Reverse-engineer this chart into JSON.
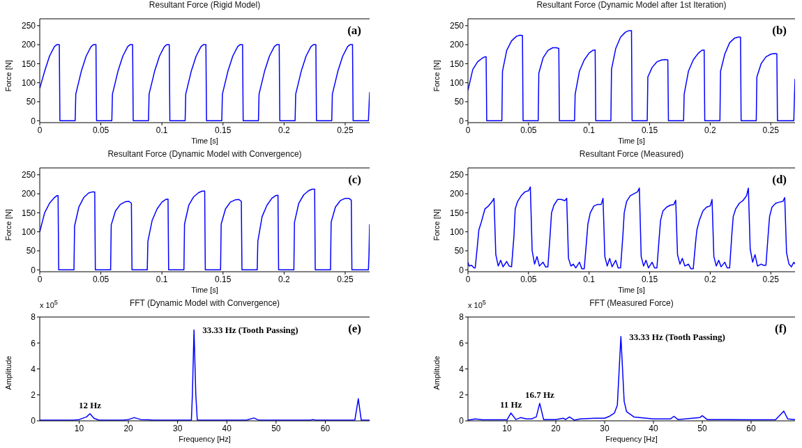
{
  "chart_data": [
    {
      "type": "line",
      "title": "Resultant Force (Rigid Model)",
      "xlabel": "Time [s]",
      "ylabel": "Force [N]",
      "color": "#0000ff",
      "xlim": [
        0,
        0.27
      ],
      "xticks": [
        0,
        0.05,
        0.1,
        0.15,
        0.2,
        0.25
      ],
      "ylim": [
        -5,
        268
      ],
      "yticks": [
        0,
        50,
        100,
        150,
        200,
        250
      ],
      "x": [
        0,
        0.004,
        0.008,
        0.012,
        0.014,
        0.016,
        0.0165,
        0.029,
        0.0295,
        0.034,
        0.038,
        0.042,
        0.044,
        0.046,
        0.0465,
        0.059,
        0.0595,
        0.064,
        0.068,
        0.072,
        0.074,
        0.076,
        0.0765,
        0.089,
        0.0895,
        0.094,
        0.098,
        0.102,
        0.104,
        0.106,
        0.1065,
        0.119,
        0.1195,
        0.124,
        0.128,
        0.132,
        0.134,
        0.136,
        0.1365,
        0.149,
        0.1495,
        0.154,
        0.158,
        0.162,
        0.164,
        0.166,
        0.1665,
        0.179,
        0.1795,
        0.184,
        0.188,
        0.192,
        0.194,
        0.196,
        0.1965,
        0.209,
        0.2095,
        0.214,
        0.218,
        0.222,
        0.224,
        0.226,
        0.2265,
        0.239,
        0.2395,
        0.244,
        0.248,
        0.252,
        0.254,
        0.256,
        0.2565,
        0.269,
        0.2695,
        0.27
      ],
      "values": [
        85,
        130,
        170,
        195,
        200,
        200,
        0,
        0,
        70,
        130,
        170,
        195,
        200,
        200,
        0,
        0,
        70,
        130,
        170,
        195,
        200,
        200,
        0,
        0,
        70,
        130,
        170,
        195,
        200,
        200,
        0,
        0,
        70,
        130,
        170,
        195,
        200,
        200,
        0,
        0,
        70,
        130,
        170,
        195,
        200,
        200,
        0,
        0,
        70,
        130,
        170,
        195,
        200,
        200,
        0,
        0,
        70,
        130,
        170,
        195,
        200,
        200,
        0,
        0,
        70,
        130,
        170,
        195,
        200,
        200,
        0,
        0,
        35,
        75
      ],
      "annotations": [
        "(a)"
      ]
    },
    {
      "type": "line",
      "title": "Resultant Force (Dynamic Model after 1st Iteration)",
      "xlabel": "Time [s]",
      "ylabel": "Force [N]",
      "color": "#0000ff",
      "xlim": [
        0,
        0.27
      ],
      "xticks": [
        0,
        0.05,
        0.1,
        0.15,
        0.2,
        0.25
      ],
      "ylim": [
        -5,
        268
      ],
      "yticks": [
        0,
        50,
        100,
        150,
        200,
        250
      ],
      "x": [
        0,
        0.004,
        0.008,
        0.012,
        0.014,
        0.015,
        0.0155,
        0.028,
        0.0285,
        0.032,
        0.036,
        0.04,
        0.043,
        0.045,
        0.0455,
        0.058,
        0.0585,
        0.062,
        0.066,
        0.07,
        0.073,
        0.075,
        0.0755,
        0.088,
        0.0885,
        0.092,
        0.096,
        0.1,
        0.103,
        0.105,
        0.1055,
        0.118,
        0.1185,
        0.122,
        0.126,
        0.13,
        0.133,
        0.135,
        0.1355,
        0.148,
        0.1485,
        0.152,
        0.156,
        0.16,
        0.163,
        0.165,
        0.1655,
        0.178,
        0.1785,
        0.182,
        0.186,
        0.19,
        0.193,
        0.195,
        0.1955,
        0.208,
        0.2085,
        0.212,
        0.216,
        0.22,
        0.223,
        0.225,
        0.2255,
        0.238,
        0.2385,
        0.242,
        0.246,
        0.25,
        0.253,
        0.255,
        0.2555,
        0.269,
        0.2695,
        0.27
      ],
      "values": [
        80,
        135,
        155,
        165,
        168,
        168,
        0,
        0,
        130,
        185,
        210,
        222,
        225,
        224,
        0,
        0,
        125,
        165,
        185,
        192,
        192,
        190,
        0,
        0,
        70,
        130,
        160,
        178,
        185,
        186,
        0,
        0,
        135,
        190,
        220,
        233,
        237,
        237,
        0,
        0,
        115,
        140,
        155,
        160,
        161,
        160,
        0,
        0,
        70,
        130,
        160,
        177,
        185,
        186,
        0,
        0,
        130,
        175,
        205,
        217,
        220,
        220,
        0,
        0,
        115,
        150,
        168,
        175,
        177,
        176,
        0,
        0,
        60,
        110
      ],
      "annotations": [
        "(b)"
      ]
    },
    {
      "type": "line",
      "title": "Resultant Force (Dynamic Model with Convergence)",
      "xlabel": "Time [s]",
      "ylabel": "Force [N]",
      "color": "#0000ff",
      "xlim": [
        0,
        0.27
      ],
      "xticks": [
        0,
        0.05,
        0.1,
        0.15,
        0.2,
        0.25
      ],
      "ylim": [
        -5,
        268
      ],
      "yticks": [
        0,
        50,
        100,
        150,
        200,
        250
      ],
      "x": [
        0,
        0.004,
        0.008,
        0.012,
        0.014,
        0.015,
        0.0155,
        0.028,
        0.0285,
        0.032,
        0.036,
        0.04,
        0.043,
        0.045,
        0.0455,
        0.058,
        0.0585,
        0.062,
        0.066,
        0.07,
        0.073,
        0.075,
        0.0755,
        0.088,
        0.0885,
        0.092,
        0.096,
        0.1,
        0.103,
        0.105,
        0.1055,
        0.118,
        0.1185,
        0.122,
        0.126,
        0.13,
        0.133,
        0.135,
        0.1355,
        0.148,
        0.1485,
        0.152,
        0.156,
        0.16,
        0.163,
        0.165,
        0.1655,
        0.178,
        0.1785,
        0.182,
        0.186,
        0.19,
        0.193,
        0.195,
        0.1955,
        0.208,
        0.2085,
        0.212,
        0.216,
        0.22,
        0.223,
        0.225,
        0.2255,
        0.238,
        0.2385,
        0.242,
        0.246,
        0.25,
        0.253,
        0.255,
        0.2555,
        0.269,
        0.2695,
        0.27
      ],
      "values": [
        100,
        150,
        175,
        190,
        195,
        195,
        0,
        0,
        115,
        165,
        190,
        202,
        205,
        205,
        0,
        0,
        118,
        155,
        172,
        179,
        180,
        175,
        0,
        0,
        75,
        130,
        160,
        178,
        185,
        186,
        0,
        0,
        120,
        170,
        192,
        203,
        207,
        207,
        0,
        0,
        120,
        160,
        178,
        184,
        185,
        180,
        0,
        0,
        75,
        140,
        170,
        188,
        195,
        196,
        0,
        0,
        125,
        175,
        197,
        208,
        212,
        212,
        0,
        0,
        125,
        165,
        182,
        188,
        188,
        183,
        0,
        0,
        40,
        120
      ],
      "annotations": [
        "(c)"
      ]
    },
    {
      "type": "line",
      "title": "Resultant Force (Measured)",
      "xlabel": "Time [s]",
      "ylabel": "Force [N]",
      "color": "#0000ff",
      "xlim": [
        0,
        0.27
      ],
      "xticks": [
        0,
        0.05,
        0.1,
        0.15,
        0.2,
        0.25
      ],
      "ylim": [
        -5,
        268
      ],
      "yticks": [
        0,
        50,
        100,
        150,
        200,
        250
      ],
      "x": [
        0,
        0.001,
        0.003,
        0.005,
        0.006,
        0.008,
        0.009,
        0.011,
        0.014,
        0.017,
        0.02,
        0.0215,
        0.023,
        0.025,
        0.027,
        0.029,
        0.032,
        0.034,
        0.036,
        0.038,
        0.039,
        0.041,
        0.044,
        0.047,
        0.05,
        0.0515,
        0.053,
        0.055,
        0.057,
        0.059,
        0.062,
        0.064,
        0.066,
        0.068,
        0.069,
        0.071,
        0.074,
        0.077,
        0.08,
        0.0815,
        0.083,
        0.085,
        0.087,
        0.089,
        0.092,
        0.094,
        0.096,
        0.098,
        0.099,
        0.101,
        0.104,
        0.107,
        0.11,
        0.1115,
        0.113,
        0.115,
        0.117,
        0.119,
        0.122,
        0.124,
        0.126,
        0.128,
        0.129,
        0.131,
        0.134,
        0.137,
        0.14,
        0.1415,
        0.143,
        0.145,
        0.147,
        0.149,
        0.152,
        0.154,
        0.156,
        0.158,
        0.159,
        0.161,
        0.164,
        0.167,
        0.17,
        0.1715,
        0.173,
        0.175,
        0.177,
        0.179,
        0.182,
        0.184,
        0.186,
        0.188,
        0.189,
        0.191,
        0.194,
        0.197,
        0.2,
        0.2015,
        0.203,
        0.205,
        0.207,
        0.209,
        0.212,
        0.214,
        0.216,
        0.218,
        0.219,
        0.221,
        0.224,
        0.227,
        0.23,
        0.2315,
        0.233,
        0.235,
        0.237,
        0.239,
        0.242,
        0.244,
        0.246,
        0.248,
        0.249,
        0.251,
        0.254,
        0.257,
        0.26,
        0.2615,
        0.263,
        0.265,
        0.267,
        0.269,
        0.27
      ],
      "values": [
        20,
        10,
        12,
        5,
        5,
        70,
        105,
        125,
        160,
        168,
        180,
        188,
        40,
        10,
        25,
        8,
        22,
        10,
        8,
        90,
        160,
        180,
        195,
        205,
        208,
        218,
        50,
        15,
        35,
        10,
        20,
        8,
        8,
        100,
        150,
        170,
        185,
        185,
        182,
        188,
        30,
        10,
        15,
        5,
        20,
        3,
        3,
        80,
        120,
        150,
        168,
        172,
        172,
        188,
        35,
        10,
        30,
        8,
        25,
        5,
        5,
        95,
        150,
        180,
        195,
        200,
        205,
        215,
        35,
        10,
        25,
        5,
        20,
        5,
        5,
        90,
        130,
        155,
        165,
        170,
        172,
        183,
        40,
        15,
        30,
        10,
        15,
        3,
        3,
        75,
        105,
        130,
        155,
        165,
        168,
        185,
        35,
        10,
        25,
        8,
        20,
        5,
        5,
        100,
        140,
        160,
        175,
        182,
        195,
        215,
        55,
        20,
        40,
        10,
        15,
        12,
        12,
        100,
        140,
        165,
        175,
        178,
        180,
        190,
        45,
        15,
        8,
        20,
        15
      ],
      "annotations": [
        "(d)"
      ]
    },
    {
      "type": "line",
      "title": "FFT (Dynamic Model with Convergence)",
      "xlabel": "Frequency [Hz]",
      "ylabel": "Amplitude",
      "color": "#0000ff",
      "xlim": [
        2,
        69
      ],
      "xticks": [
        10,
        20,
        30,
        40,
        50,
        60
      ],
      "ylim": [
        0,
        8
      ],
      "yticks": [
        0,
        2,
        4,
        6,
        8
      ],
      "x": [
        2,
        9,
        10,
        11.5,
        12.2,
        13,
        14,
        19,
        20,
        21.2,
        22.5,
        24,
        25,
        32.8,
        33,
        33.33,
        33.7,
        34,
        44,
        45.5,
        46.5,
        57,
        57.5,
        58,
        66,
        66.7,
        67.3,
        69
      ],
      "values": [
        0.05,
        0.05,
        0.1,
        0.3,
        0.55,
        0.2,
        0.05,
        0.05,
        0.1,
        0.25,
        0.1,
        0.08,
        0.05,
        0.05,
        2,
        7,
        2,
        0.05,
        0.05,
        0.22,
        0.05,
        0.05,
        0.1,
        0.05,
        0.05,
        1.7,
        0.05,
        0.05
      ],
      "annotations": [
        "x 10$^{5}$",
        "(e)",
        {
          "text": "12 Hz",
          "x": 12.2,
          "y": 0.55
        },
        {
          "text": "33.33 Hz (Tooth Passing)",
          "x": 33.33,
          "y": 7
        }
      ]
    },
    {
      "type": "line",
      "title": "FFT (Measured Force)",
      "xlabel": "Frequency [Hz]",
      "ylabel": "Amplitude",
      "color": "#0000ff",
      "xlim": [
        2,
        69
      ],
      "xticks": [
        10,
        20,
        30,
        40,
        50,
        60
      ],
      "ylim": [
        0,
        8
      ],
      "yticks": [
        0,
        2,
        4,
        6,
        8
      ],
      "x": [
        2,
        3.5,
        5,
        10,
        10.8,
        11.8,
        12.8,
        14,
        15,
        16,
        16.7,
        17.5,
        20,
        21.5,
        22,
        22.8,
        23.8,
        25,
        28,
        30,
        31,
        32,
        32.6,
        33.33,
        34,
        34.5,
        36,
        40,
        43.5,
        44.2,
        45,
        48,
        49.5,
        50,
        51,
        55,
        60,
        65,
        66.7,
        67.5,
        69
      ],
      "values": [
        0.05,
        0.15,
        0.08,
        0.08,
        0.6,
        0.1,
        0.25,
        0.15,
        0.15,
        0.3,
        1.35,
        0.1,
        0.1,
        0.2,
        0.1,
        0.3,
        0.05,
        0.15,
        0.2,
        0.2,
        0.35,
        0.6,
        1.2,
        6.5,
        1.5,
        0.7,
        0.3,
        0.15,
        0.15,
        0.35,
        0.1,
        0.2,
        0.25,
        0.4,
        0.1,
        0.1,
        0.08,
        0.08,
        0.75,
        0.15,
        0.1
      ],
      "annotations": [
        "x 10$^{5}$",
        "(f)",
        {
          "text": "11 Hz",
          "x": 10.8,
          "y": 0.6
        },
        {
          "text": "16.7 Hz",
          "x": 16.7,
          "y": 1.35
        },
        {
          "text": "33.33 Hz (Tooth Passing)",
          "x": 33.33,
          "y": 6.5
        }
      ]
    }
  ]
}
